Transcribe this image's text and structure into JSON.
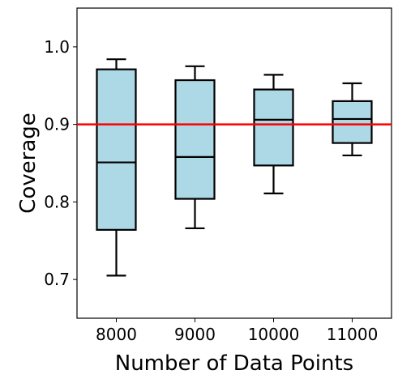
{
  "chart_data": {
    "type": "box",
    "title": "",
    "xlabel": "Number of Data Points",
    "ylabel": "Coverage",
    "ylim": [
      0.65,
      1.05
    ],
    "yticks": [
      "0.7",
      "0.8",
      "0.9",
      "1.0"
    ],
    "ytick_values": [
      0.7,
      0.8,
      0.9,
      1.0
    ],
    "categories": [
      "8000",
      "9000",
      "10000",
      "11000"
    ],
    "boxes": [
      {
        "whisker_low": 0.705,
        "q1": 0.764,
        "median": 0.851,
        "q3": 0.971,
        "whisker_high": 0.984
      },
      {
        "whisker_low": 0.766,
        "q1": 0.804,
        "median": 0.858,
        "q3": 0.957,
        "whisker_high": 0.975
      },
      {
        "whisker_low": 0.811,
        "q1": 0.847,
        "median": 0.906,
        "q3": 0.945,
        "whisker_high": 0.964
      },
      {
        "whisker_low": 0.86,
        "q1": 0.876,
        "median": 0.907,
        "q3": 0.93,
        "whisker_high": 0.953
      }
    ],
    "reference_line": {
      "y": 0.9,
      "color": "#ff0000"
    },
    "box_fill": "#add8e6",
    "line_color": "#000000",
    "grid": false,
    "legend": "none"
  }
}
